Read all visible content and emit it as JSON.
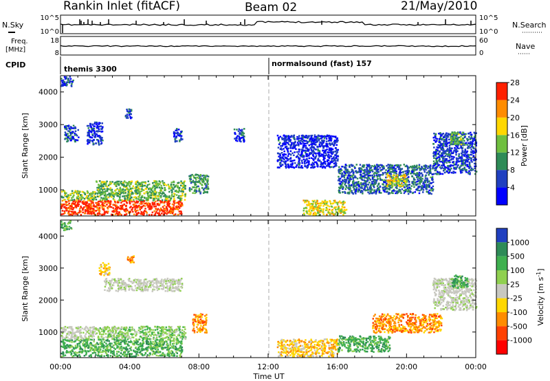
{
  "header": {
    "station": "Rankin Inlet (fitACF)",
    "beam": "Beam 02",
    "date": "21/May/2010"
  },
  "nsky_panel": {
    "left_label": "N.Sky",
    "right_label": "N.Search",
    "left_ticks": [
      "10^5",
      "10^0"
    ],
    "right_ticks": [
      "10^5",
      "10^0"
    ]
  },
  "freq_panel": {
    "left_label_line1": "Freq.",
    "left_label_line2": "[MHz]",
    "right_label": "Nave",
    "left_ticks": [
      "18",
      "8"
    ],
    "right_ticks": [
      "60",
      "0"
    ]
  },
  "cpid_panel": {
    "label": "CPID",
    "segments": [
      {
        "name": "themis 3300",
        "start_ut": 0
      },
      {
        "name": "normalsound (fast) 157",
        "start_ut": 12
      }
    ]
  },
  "time_axis": {
    "ticks": [
      "00:00",
      "04:00",
      "08:00",
      "12:00",
      "16:00",
      "20:00",
      "00:00"
    ],
    "label": "Time UT"
  },
  "chart_data": [
    {
      "type": "heatmap",
      "ylabel": "Slant Range [km]",
      "x_unit": "UT hours",
      "xlim": [
        0,
        24
      ],
      "ylim": [
        200,
        4500
      ],
      "y_ticks": [
        1000,
        2000,
        3000,
        4000
      ],
      "colorbar": {
        "label": "Power [dB]",
        "ticks": [
          4,
          8,
          12,
          16,
          20,
          24,
          28
        ],
        "range": [
          0,
          30
        ],
        "colors": [
          "#0000ff",
          "#2040c0",
          "#2e8b57",
          "#6fbf3f",
          "#ffd700",
          "#ff8c00",
          "#ff2000"
        ]
      },
      "regions": [
        {
          "ut": [
            0.0,
            7.0
          ],
          "range": [
            250,
            700
          ],
          "value": 28
        },
        {
          "ut": [
            0.0,
            2.0
          ],
          "range": [
            700,
            1000
          ],
          "value": 15
        },
        {
          "ut": [
            2.0,
            7.2
          ],
          "range": [
            700,
            1300
          ],
          "value": 14
        },
        {
          "ut": [
            7.4,
            8.5
          ],
          "range": [
            900,
            1500
          ],
          "value": 12
        },
        {
          "ut": [
            0.2,
            1.0
          ],
          "range": [
            2500,
            3000
          ],
          "value": 6
        },
        {
          "ut": [
            1.5,
            2.4
          ],
          "range": [
            2400,
            3100
          ],
          "value": 5
        },
        {
          "ut": [
            3.7,
            4.1
          ],
          "range": [
            3200,
            3500
          ],
          "value": 6
        },
        {
          "ut": [
            6.5,
            7.0
          ],
          "range": [
            2500,
            2900
          ],
          "value": 5
        },
        {
          "ut": [
            10.0,
            10.6
          ],
          "range": [
            2500,
            2900
          ],
          "value": 6
        },
        {
          "ut": [
            12.5,
            16.0
          ],
          "range": [
            1700,
            2700
          ],
          "value": 4
        },
        {
          "ut": [
            14.0,
            16.5
          ],
          "range": [
            250,
            700
          ],
          "value": 18
        },
        {
          "ut": [
            16.0,
            21.5
          ],
          "range": [
            900,
            1800
          ],
          "value": 8
        },
        {
          "ut": [
            18.8,
            20.0
          ],
          "range": [
            1100,
            1500
          ],
          "value": 18
        },
        {
          "ut": [
            21.5,
            24.0
          ],
          "range": [
            1500,
            2800
          ],
          "value": 6
        },
        {
          "ut": [
            22.5,
            23.3
          ],
          "range": [
            2400,
            2800
          ],
          "value": 14
        },
        {
          "ut": [
            0.0,
            0.7
          ],
          "range": [
            4200,
            4500
          ],
          "value": 6
        }
      ]
    },
    {
      "type": "heatmap",
      "ylabel": "Slant Range [km]",
      "x_unit": "UT hours",
      "xlim": [
        0,
        24
      ],
      "ylim": [
        200,
        4500
      ],
      "y_ticks": [
        1000,
        2000,
        3000,
        4000
      ],
      "colorbar": {
        "label": "Velocity [m s^-1]",
        "ticks": [
          "1000",
          "500",
          "100",
          "25",
          "-25",
          "-100",
          "-500",
          "-1000"
        ],
        "colors": [
          "#2040c0",
          "#2e8b57",
          "#3fb04f",
          "#90d050",
          "#c8c8c0",
          "#ffd700",
          "#ff8c00",
          "#ff4000",
          "#ff0000"
        ]
      },
      "regions": [
        {
          "ut": [
            0.0,
            7.0
          ],
          "range": [
            250,
            800
          ],
          "value": 100
        },
        {
          "ut": [
            0.0,
            2.0
          ],
          "range": [
            800,
            1200
          ],
          "value": 0
        },
        {
          "ut": [
            2.0,
            7.2
          ],
          "range": [
            800,
            1200
          ],
          "value": 25
        },
        {
          "ut": [
            7.6,
            8.4
          ],
          "range": [
            1000,
            1600
          ],
          "value": -500
        },
        {
          "ut": [
            2.2,
            2.8
          ],
          "range": [
            2800,
            3200
          ],
          "value": -100
        },
        {
          "ut": [
            3.8,
            4.2
          ],
          "range": [
            3200,
            3400
          ],
          "value": -500
        },
        {
          "ut": [
            2.5,
            7.0
          ],
          "range": [
            2300,
            2700
          ],
          "value": 0
        },
        {
          "ut": [
            12.5,
            16.0
          ],
          "range": [
            250,
            800
          ],
          "value": -100
        },
        {
          "ut": [
            18.0,
            22.0
          ],
          "range": [
            1000,
            1600
          ],
          "value": -500
        },
        {
          "ut": [
            21.5,
            24.0
          ],
          "range": [
            1700,
            2700
          ],
          "value": 0
        },
        {
          "ut": [
            16.0,
            19.0
          ],
          "range": [
            400,
            900
          ],
          "value": 100
        },
        {
          "ut": [
            22.5,
            23.5
          ],
          "range": [
            2400,
            2800
          ],
          "value": 100
        },
        {
          "ut": [
            0.0,
            0.6
          ],
          "range": [
            4200,
            4500
          ],
          "value": 100
        }
      ]
    }
  ]
}
